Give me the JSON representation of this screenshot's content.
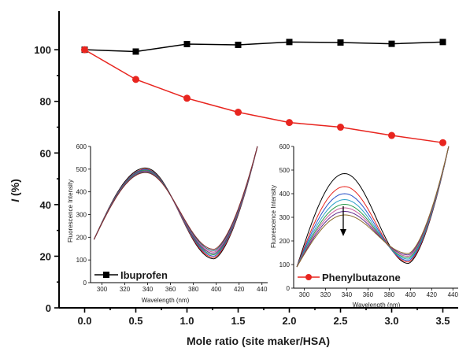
{
  "chart_data": [
    {
      "type": "line",
      "title": "",
      "xlabel": "Mole ratio (site maker/HSA)",
      "ylabel": "I (%)",
      "ylabel_italic_part": "I",
      "ylabel_rest": " (%)",
      "xlim": [
        -0.25,
        3.65
      ],
      "ylim": [
        0,
        115
      ],
      "xticks": [
        0.0,
        0.5,
        1.0,
        1.5,
        2.0,
        2.5,
        3.0,
        3.5
      ],
      "xtick_labels": [
        "0.0",
        "0.5",
        "1.0",
        "1.5",
        "2.0",
        "2.5",
        "3.0",
        "3.5"
      ],
      "yticks": [
        0,
        20,
        40,
        60,
        80,
        100
      ],
      "ytick_labels": [
        "0",
        "20",
        "40",
        "60",
        "80",
        "100"
      ],
      "series": [
        {
          "name": "Ibuprofen",
          "color": "#000000",
          "marker": "square",
          "x": [
            0.0,
            0.5,
            1.0,
            1.5,
            2.0,
            2.5,
            3.0,
            3.5
          ],
          "y": [
            100,
            99.3,
            102.2,
            101.9,
            103,
            102.8,
            102.3,
            103
          ]
        },
        {
          "name": "Phenylbutazone",
          "color": "#e8251f",
          "marker": "circle",
          "x": [
            0.0,
            0.5,
            1.0,
            1.5,
            2.0,
            2.5,
            3.0,
            3.5
          ],
          "y": [
            100,
            88.5,
            81.2,
            75.8,
            71.8,
            70,
            66.8,
            64
          ]
        }
      ],
      "legend": "inside-insets"
    },
    {
      "type": "line",
      "title": "",
      "xlabel": "Wavelength (nm)",
      "ylabel": "Fluorescence Intensity",
      "xlim": [
        290,
        445
      ],
      "ylim": [
        0,
        600
      ],
      "xticks": [
        300,
        320,
        340,
        360,
        380,
        400,
        420,
        440
      ],
      "yticks": [
        0,
        100,
        200,
        300,
        400,
        500,
        600
      ],
      "curve_params": {
        "left": 190,
        "right": 600,
        "peaks": [
          505,
          500,
          498,
          495,
          492,
          490,
          488,
          485
        ]
      },
      "series_colors": [
        "#000000",
        "#e8251f",
        "#2a52c8",
        "#2a9a4a",
        "#5e2a8a",
        "#c85a9a",
        "#1a6a7a",
        "#8a2a2a"
      ]
    },
    {
      "type": "line",
      "title": "",
      "xlabel": "Wavelength (nm)",
      "ylabel": "Fluorescence Intensity",
      "xlim": [
        290,
        445
      ],
      "ylim": [
        0,
        600
      ],
      "xticks": [
        300,
        320,
        340,
        360,
        380,
        400,
        420,
        440
      ],
      "yticks": [
        0,
        100,
        200,
        300,
        400,
        500,
        600
      ],
      "curve_params": {
        "left": 90,
        "right": 600,
        "peaks": [
          485,
          430,
          400,
          375,
          355,
          340,
          325,
          310
        ]
      },
      "series_colors": [
        "#000000",
        "#e8251f",
        "#2a52c8",
        "#2aa0c8",
        "#2a9a4a",
        "#c85a9a",
        "#5e2a8a",
        "#8a6a2a"
      ]
    }
  ]
}
